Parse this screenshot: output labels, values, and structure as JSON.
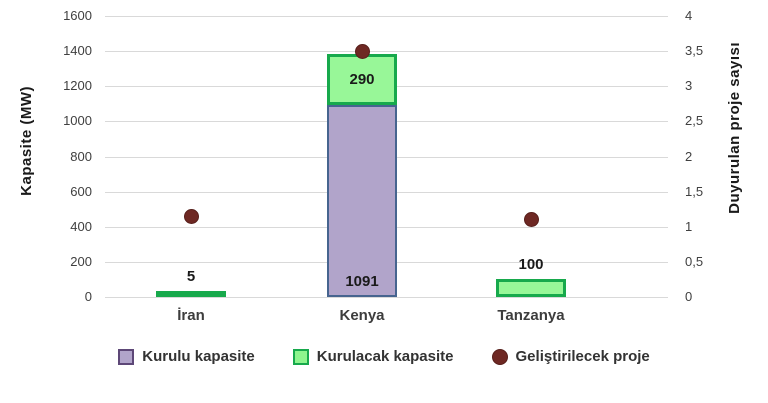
{
  "chart_data": {
    "type": "bar",
    "subtype": "stacked-bar-with-scatter-overlay",
    "categories": [
      "İran",
      "Kenya",
      "Tanzanya"
    ],
    "series": [
      {
        "name": "Kurulu kapasite",
        "type": "bar",
        "axis": "left",
        "values": [
          0,
          1091,
          0
        ],
        "value_labels": [
          "",
          "1091",
          ""
        ],
        "label_placement": [
          "none",
          "inside-bottom",
          "none"
        ],
        "fill": "#b1a4ca",
        "border": "#46648f"
      },
      {
        "name": "Kurulacak kapasite",
        "type": "bar",
        "axis": "left",
        "values": [
          5,
          290,
          100
        ],
        "value_labels": [
          "5",
          "290",
          "100"
        ],
        "label_placement": [
          "above",
          "inside-center",
          "above"
        ],
        "fill": "#98f798",
        "border": "#17a94c"
      },
      {
        "name": "Geliştirilecek proje",
        "type": "scatter",
        "axis": "right",
        "values": [
          1.15,
          3.5,
          1.1
        ],
        "fill": "#6e2823",
        "border": "#571f1b"
      }
    ],
    "left_axis": {
      "title": "Kapasite  (MW)",
      "min": 0,
      "max": 1600,
      "tick_step": 200,
      "ticks": [
        "0",
        "200",
        "400",
        "600",
        "800",
        "1000",
        "1200",
        "1400",
        "1600"
      ]
    },
    "right_axis": {
      "title": "Duyurulan proje sayısı",
      "min": 0,
      "max": 4,
      "tick_step": 0.5,
      "ticks": [
        "0",
        "0,5",
        "1",
        "1,5",
        "2",
        "2,5",
        "3",
        "3,5",
        "4"
      ]
    },
    "grid": "horizontal",
    "gridline_color": "#d9d9d9",
    "legend_position": "bottom",
    "legend": [
      {
        "label": "Kurulu kapasite",
        "swatch": "square",
        "fill": "#b1a4ca",
        "border": "#5d4777"
      },
      {
        "label": "Kurulacak kapasite",
        "swatch": "square",
        "fill": "#8ef58e",
        "border": "#17a94c"
      },
      {
        "label": "Geliştirilecek proje",
        "swatch": "circle",
        "fill": "#6e2823",
        "border": "#571f1b"
      }
    ]
  }
}
